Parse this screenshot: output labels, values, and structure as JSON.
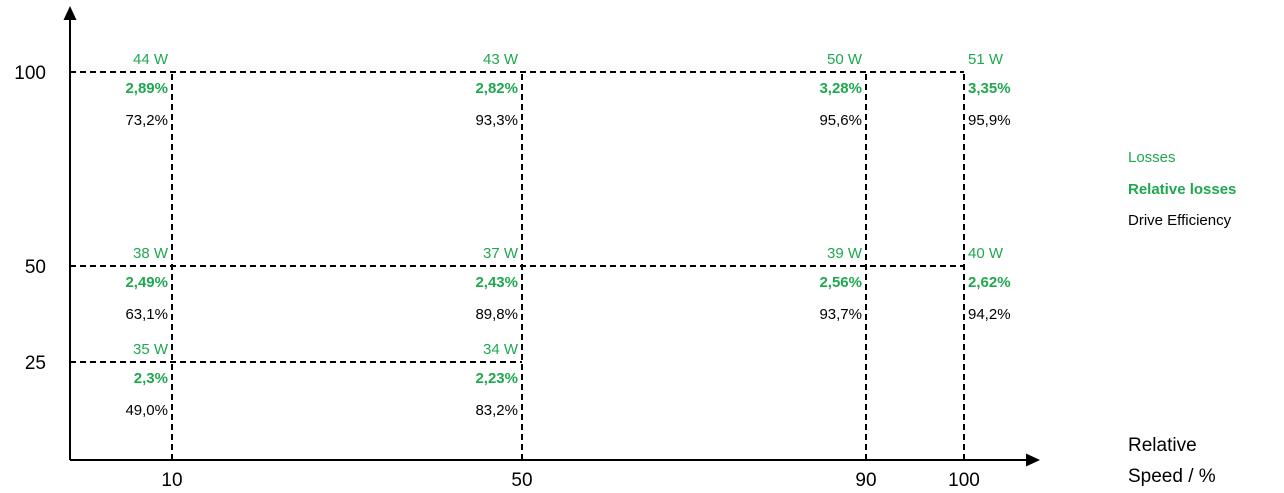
{
  "chart_data": {
    "type": "table",
    "title": "",
    "xlabel": "Relative Speed / %",
    "xlabel_lines": [
      "Relative",
      "Speed / %"
    ],
    "ylabel": "",
    "x_ticks": [
      10,
      50,
      90,
      100
    ],
    "y_ticks": [
      25,
      50,
      100
    ],
    "grid": "dashed guide lines at operating points",
    "legend_position": "right",
    "legend": [
      {
        "label": "Losses",
        "color": "#1fa84f",
        "bold": false
      },
      {
        "label": "Relative losses",
        "color": "#1fa84f",
        "bold": true
      },
      {
        "label": "Drive Efficiency",
        "color": "#000000",
        "bold": false
      }
    ],
    "points": [
      {
        "x": 10,
        "y": 100,
        "losses": "44 W",
        "relative_losses": "2,89%",
        "efficiency": "73,2%"
      },
      {
        "x": 50,
        "y": 100,
        "losses": "43 W",
        "relative_losses": "2,82%",
        "efficiency": "93,3%"
      },
      {
        "x": 90,
        "y": 100,
        "losses": "50 W",
        "relative_losses": "3,28%",
        "efficiency": "95,6%"
      },
      {
        "x": 100,
        "y": 100,
        "losses": "51 W",
        "relative_losses": "3,35%",
        "efficiency": "95,9%"
      },
      {
        "x": 10,
        "y": 50,
        "losses": "38 W",
        "relative_losses": "2,49%",
        "efficiency": "63,1%"
      },
      {
        "x": 50,
        "y": 50,
        "losses": "37 W",
        "relative_losses": "2,43%",
        "efficiency": "89,8%"
      },
      {
        "x": 90,
        "y": 50,
        "losses": "39 W",
        "relative_losses": "2,56%",
        "efficiency": "93,7%"
      },
      {
        "x": 100,
        "y": 50,
        "losses": "40 W",
        "relative_losses": "2,62%",
        "efficiency": "94,2%"
      },
      {
        "x": 10,
        "y": 25,
        "losses": "35 W",
        "relative_losses": "2,3%",
        "efficiency": "49,0%"
      },
      {
        "x": 50,
        "y": 25,
        "losses": "34 W",
        "relative_losses": "2,23%",
        "efficiency": "83,2%"
      }
    ]
  }
}
